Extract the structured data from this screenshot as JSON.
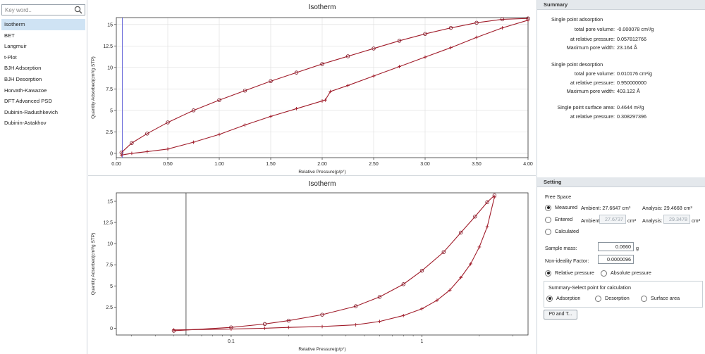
{
  "search": {
    "placeholder": "Key word.."
  },
  "nav": {
    "items": [
      "Isotherm",
      "BET",
      "Langmuir",
      "t-Plot",
      "BJH Adsorption",
      "BJH Desorption",
      "Horvath-Kawazoe",
      "DFT Advanced PSD",
      "Dubinin-Radushkevich",
      "Dubinin-Astakhov"
    ],
    "active_index": 0
  },
  "colors": {
    "series": "#a01c2a",
    "marker": "#7a1020",
    "cursor": "#5b5bd6",
    "grid": "#dddddd"
  },
  "chart_data": [
    {
      "type": "line",
      "title": "Isotherm",
      "xlabel": "Relative Pressure(p/p°)",
      "ylabel": "Quantity Adsorbed(cm³/g STP)",
      "xlim": [
        0,
        4.0
      ],
      "ylim": [
        -0.5,
        15.8
      ],
      "xscale": "linear",
      "xticks": [
        "0.00",
        "0.50",
        "1.00",
        "1.50",
        "2.00",
        "2.50",
        "3.00",
        "3.50",
        "4.00"
      ],
      "yticks": [
        "0",
        "2.5",
        "5",
        "7.5",
        "10",
        "12.5",
        "15"
      ],
      "grid": true,
      "cursor_x": 0.058,
      "series": [
        {
          "marker": "circle",
          "x": [
            0.05,
            0.15,
            0.3,
            0.5,
            0.75,
            1.0,
            1.25,
            1.5,
            1.75,
            2.0,
            2.25,
            2.5,
            2.75,
            3.0,
            3.25,
            3.5,
            3.75,
            4.0
          ],
          "values": [
            0.1,
            1.2,
            2.3,
            3.6,
            5.0,
            6.2,
            7.3,
            8.4,
            9.4,
            10.4,
            11.3,
            12.2,
            13.1,
            13.9,
            14.6,
            15.2,
            15.6,
            15.7
          ]
        },
        {
          "marker": "plus",
          "x": [
            0.05,
            0.15,
            0.3,
            0.5,
            0.75,
            1.0,
            1.25,
            1.5,
            1.75,
            2.0,
            2.03,
            2.08,
            2.25,
            2.5,
            2.75,
            3.0,
            3.25,
            3.5,
            3.75,
            4.0
          ],
          "values": [
            -0.2,
            0.0,
            0.2,
            0.5,
            1.3,
            2.2,
            3.3,
            4.3,
            5.2,
            6.1,
            6.2,
            7.2,
            7.9,
            9.0,
            10.1,
            11.2,
            12.3,
            13.5,
            14.6,
            15.5
          ]
        }
      ]
    },
    {
      "type": "line",
      "title": "Isotherm",
      "xlabel": "Relative Pressure(p/p°)",
      "ylabel": "Quantity Adsorbed(cm³/g STP)",
      "xlim": [
        0.025,
        3.6
      ],
      "ylim": [
        -0.8,
        16.0
      ],
      "xscale": "log",
      "xticks": [
        "0.1",
        "1"
      ],
      "yticks": [
        "0",
        "2.5",
        "5",
        "7.5",
        "10",
        "12.5",
        "15"
      ],
      "grid": false,
      "cursor_x": 0.058,
      "series": [
        {
          "marker": "circle",
          "x": [
            0.05,
            0.1,
            0.15,
            0.2,
            0.3,
            0.45,
            0.6,
            0.8,
            1.0,
            1.3,
            1.6,
            1.9,
            2.2,
            2.4
          ],
          "values": [
            -0.3,
            0.1,
            0.5,
            0.9,
            1.6,
            2.6,
            3.7,
            5.2,
            6.8,
            9.0,
            11.3,
            13.2,
            14.9,
            15.7
          ]
        },
        {
          "marker": "plus",
          "x": [
            0.05,
            0.1,
            0.15,
            0.2,
            0.3,
            0.45,
            0.6,
            0.8,
            1.0,
            1.2,
            1.4,
            1.6,
            1.8,
            2.0,
            2.2,
            2.4
          ],
          "values": [
            -0.2,
            -0.1,
            0.0,
            0.1,
            0.2,
            0.4,
            0.8,
            1.5,
            2.3,
            3.3,
            4.5,
            6.0,
            7.6,
            9.6,
            12.0,
            15.5
          ]
        }
      ]
    }
  ],
  "summary": {
    "header": "Summary",
    "adsorption_title": "Single point adsorption",
    "ads_volume_label": "total pore volume:",
    "ads_volume_value": "-0.000078 cm³/g",
    "ads_pressure_label": "at relative pressure:",
    "ads_pressure_value": "0.057812766",
    "ads_width_label": "Maximum pore width:",
    "ads_width_value": "23.164 Å",
    "desorption_title": "Single point desorption",
    "des_volume_label": "total pore volume:",
    "des_volume_value": "0.010176 cm³/g",
    "des_pressure_label": "at relative pressure:",
    "des_pressure_value": "0.950000000",
    "des_width_label": "Maximum pore width:",
    "des_width_value": "403.122 Å",
    "surface_label": "Single point surface area:",
    "surface_value": "0.4644  m²/g",
    "surface_pressure_label": "at relative pressure:",
    "surface_pressure_value": "0.308297396"
  },
  "setting": {
    "header": "Setting",
    "free_space_title": "Free Space",
    "measured_label": "Measured",
    "measured_ambient": "Ambient: 27.6647 cm³",
    "measured_analysis": "Analysis: 29.4668 cm³",
    "entered_label": "Entered",
    "ambient_label": "Ambient:",
    "ambient_value": "27.6737",
    "ambient_unit": "cm³",
    "analysis_label": "Analysis:",
    "analysis_value": "29.3478",
    "calculated_label": "Calculated",
    "sample_mass_label": "Sample mass:",
    "sample_mass_value": "0.0660",
    "sample_mass_unit": "g",
    "nonideality_label": "Non-ideality Factor:",
    "nonideality_value": "0.0000096",
    "relative_label": "Relative pressure",
    "absolute_label": "Absolute pressure",
    "summary_select_title": "Summary-Select point for calculation",
    "adsorption_label": "Adsorption",
    "desorption_label": "Desorption",
    "surface_area_label": "Surface area",
    "p0_button": "P0 and T..."
  }
}
